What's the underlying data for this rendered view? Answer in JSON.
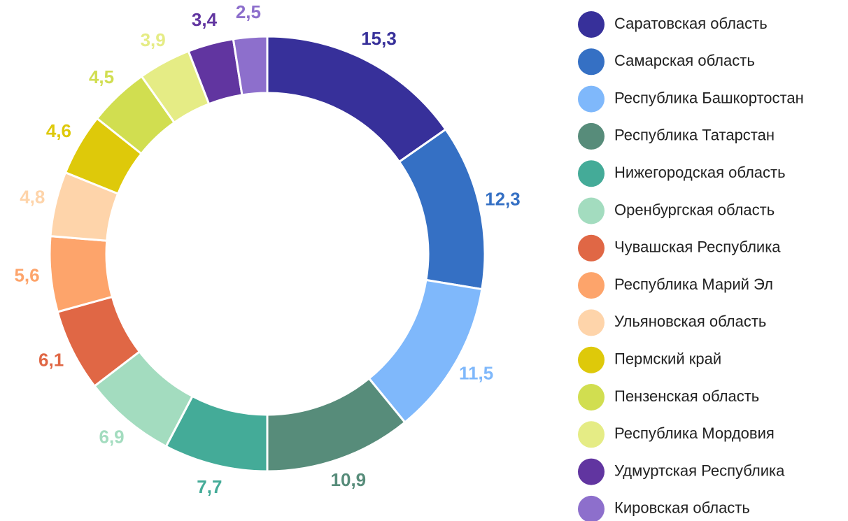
{
  "chart_data": {
    "type": "donut",
    "categories": [
      "Саратовская область",
      "Самарская область",
      "Республика Башкортостан",
      "Республика Татарстан",
      "Нижегородская область",
      "Оренбургская область",
      "Чувашская Республика",
      "Республика Марий Эл",
      "Ульяновская область",
      "Пермский край",
      "Пензенская область",
      "Республика Мордовия",
      "Удмуртская Республика",
      "Кировская область"
    ],
    "values": [
      15.3,
      12.3,
      11.5,
      10.9,
      7.7,
      6.9,
      6.1,
      5.6,
      4.8,
      4.6,
      4.5,
      3.9,
      3.4,
      2.5
    ],
    "value_labels": [
      "15,3",
      "12,3",
      "11,5",
      "10,9",
      "7,7",
      "6,9",
      "6,1",
      "5,6",
      "4,8",
      "4,6",
      "4,5",
      "3,9",
      "3,4",
      "2,5"
    ],
    "colors": [
      "#37309a",
      "#3570c4",
      "#7fb8fb",
      "#578c7a",
      "#44ab98",
      "#a3dcbf",
      "#e06745",
      "#fda46b",
      "#fed4aa",
      "#dec90a",
      "#d1de50",
      "#e5ec85",
      "#6135a0",
      "#8d6fcc"
    ],
    "legend": "right"
  }
}
